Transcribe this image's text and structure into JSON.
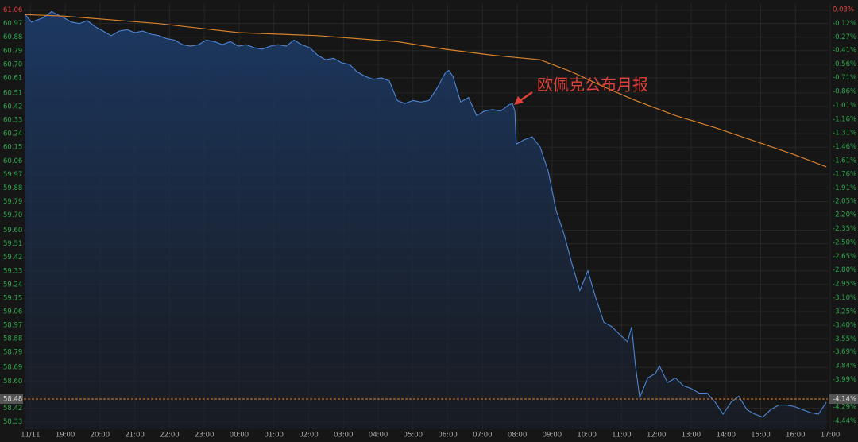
{
  "chart_data": {
    "type": "line",
    "annotation": "欧佩克公布月报",
    "xlim": [
      -0.19,
      22.93
    ],
    "xticks": [
      {
        "value": 0,
        "label": "11/11"
      },
      {
        "value": 1,
        "label": "19:00"
      },
      {
        "value": 2,
        "label": "20:00"
      },
      {
        "value": 3,
        "label": "21:00"
      },
      {
        "value": 4,
        "label": "22:00"
      },
      {
        "value": 5,
        "label": "23:00"
      },
      {
        "value": 6,
        "label": "00:00"
      },
      {
        "value": 7,
        "label": "01:00"
      },
      {
        "value": 8,
        "label": "02:00"
      },
      {
        "value": 9,
        "label": "03:00"
      },
      {
        "value": 10,
        "label": "04:00"
      },
      {
        "value": 11,
        "label": "05:00"
      },
      {
        "value": 12,
        "label": "06:00"
      },
      {
        "value": 13,
        "label": "07:00"
      },
      {
        "value": 14,
        "label": "08:00"
      },
      {
        "value": 15,
        "label": "09:00"
      },
      {
        "value": 16,
        "label": "10:00"
      },
      {
        "value": 17,
        "label": "11:00"
      },
      {
        "value": 18,
        "label": "12:00"
      },
      {
        "value": 19,
        "label": "13:00"
      },
      {
        "value": 20,
        "label": "14:00"
      },
      {
        "value": 21,
        "label": "15:00"
      },
      {
        "value": 22,
        "label": "16:00"
      },
      {
        "value": 23,
        "label": "17:00"
      }
    ],
    "ylim": [
      58.28,
      61.1
    ],
    "yticks": [
      61.06,
      60.97,
      60.88,
      60.79,
      {
        "value": 60.7,
        "label": "60.70"
      },
      60.61,
      60.51,
      60.42,
      60.33,
      60.24,
      60.15,
      60.06,
      59.97,
      59.88,
      59.79,
      {
        "value": 59.7,
        "label": "59.70"
      },
      {
        "value": 59.6,
        "label": "59.60"
      },
      59.51,
      59.42,
      59.33,
      59.24,
      59.15,
      59.06,
      58.97,
      58.88,
      58.79,
      58.69,
      {
        "value": 58.6,
        "label": "58.60"
      },
      58.42,
      58.33
    ],
    "y2lim": [
      -4.53,
      0.09
    ],
    "y2ticks": [
      {
        "value": 0.03,
        "label": "0.03%"
      },
      {
        "value": -0.12,
        "label": "-0.12%"
      },
      {
        "value": -0.27,
        "label": "-0.27%"
      },
      {
        "value": -0.41,
        "label": "-0.41%"
      },
      {
        "value": -0.56,
        "label": "-0.56%"
      },
      {
        "value": -0.71,
        "label": "-0.71%"
      },
      {
        "value": -0.86,
        "label": "-0.86%"
      },
      {
        "value": -1.01,
        "label": "-1.01%"
      },
      {
        "value": -1.16,
        "label": "-1.16%"
      },
      {
        "value": -1.31,
        "label": "-1.31%"
      },
      {
        "value": -1.46,
        "label": "-1.46%"
      },
      {
        "value": -1.61,
        "label": "-1.61%"
      },
      {
        "value": -1.76,
        "label": "-1.76%"
      },
      {
        "value": -1.91,
        "label": "-1.91%"
      },
      {
        "value": -2.05,
        "label": "-2.05%"
      },
      {
        "value": -2.2,
        "label": "-2.20%"
      },
      {
        "value": -2.35,
        "label": "-2.35%"
      },
      {
        "value": -2.5,
        "label": "-2.50%"
      },
      {
        "value": -2.65,
        "label": "-2.65%"
      },
      {
        "value": -2.8,
        "label": "-2.80%"
      },
      {
        "value": -2.95,
        "label": "-2.95%"
      },
      {
        "value": -3.1,
        "label": "-3.10%"
      },
      {
        "value": -3.25,
        "label": "-3.25%"
      },
      {
        "value": -3.4,
        "label": "-3.40%"
      },
      {
        "value": -3.55,
        "label": "-3.55%"
      },
      {
        "value": -3.69,
        "label": "-3.69%"
      },
      {
        "value": -3.84,
        "label": "-3.84%"
      },
      {
        "value": -3.99,
        "label": "-3.99%"
      },
      {
        "value": -4.29,
        "label": "-4.29%"
      },
      {
        "value": -4.44,
        "label": "-4.44%"
      }
    ],
    "reference_line": {
      "value": 58.48,
      "label": "58.48",
      "y2_label": "-4.14%",
      "color": "#d9822b"
    },
    "grid": true,
    "up_color": "#e0413a",
    "down_color": "#2fa84f",
    "series": [
      {
        "color": "#4d86d6",
        "fill": true,
        "x": [
          -0.15,
          0.03,
          0.38,
          0.61,
          0.77,
          0.95,
          1.18,
          1.41,
          1.63,
          1.86,
          2.09,
          2.32,
          2.55,
          2.78,
          3.0,
          3.23,
          3.46,
          3.69,
          3.92,
          4.15,
          4.38,
          4.6,
          4.83,
          5.06,
          5.29,
          5.52,
          5.75,
          5.98,
          6.2,
          6.43,
          6.66,
          6.89,
          7.12,
          7.35,
          7.58,
          7.8,
          8.03,
          8.26,
          8.49,
          8.72,
          8.95,
          9.17,
          9.4,
          9.63,
          9.86,
          10.09,
          10.32,
          10.55,
          10.77,
          11.0,
          11.23,
          11.46,
          11.69,
          11.92,
          12.03,
          12.15,
          12.37,
          12.6,
          12.83,
          13.06,
          13.29,
          13.52,
          13.75,
          13.86,
          13.93,
          13.97,
          14.2,
          14.43,
          14.66,
          14.89,
          15.12,
          15.35,
          15.57,
          15.8,
          16.03,
          16.26,
          16.49,
          16.72,
          16.94,
          17.17,
          17.29,
          17.4,
          17.52,
          17.75,
          17.97,
          18.09,
          18.32,
          18.55,
          18.77,
          19.0,
          19.23,
          19.46,
          19.69,
          19.92,
          20.15,
          20.37,
          20.6,
          20.83,
          21.06,
          21.29,
          21.52,
          21.74,
          21.97,
          22.2,
          22.43,
          22.66,
          22.89
        ],
        "values": [
          61.03,
          60.98,
          61.01,
          61.05,
          61.03,
          61.01,
          60.98,
          60.97,
          60.99,
          60.95,
          60.92,
          60.89,
          60.92,
          60.93,
          60.91,
          60.92,
          60.9,
          60.89,
          60.87,
          60.86,
          60.83,
          60.82,
          60.83,
          60.86,
          60.85,
          60.83,
          60.85,
          60.82,
          60.83,
          60.81,
          60.8,
          60.82,
          60.83,
          60.82,
          60.86,
          60.83,
          60.81,
          60.76,
          60.73,
          60.74,
          60.71,
          60.7,
          60.65,
          60.62,
          60.6,
          60.61,
          60.59,
          60.46,
          60.44,
          60.46,
          60.45,
          60.46,
          60.54,
          60.64,
          60.66,
          60.62,
          60.45,
          60.48,
          60.36,
          60.39,
          60.4,
          60.39,
          60.43,
          60.44,
          60.39,
          60.17,
          60.2,
          60.22,
          60.15,
          59.99,
          59.73,
          59.57,
          59.38,
          59.2,
          59.33,
          59.15,
          58.99,
          58.96,
          58.91,
          58.86,
          58.96,
          58.7,
          58.49,
          58.62,
          58.65,
          58.7,
          58.59,
          58.62,
          58.57,
          58.55,
          58.52,
          58.52,
          58.46,
          58.38,
          58.46,
          58.5,
          58.41,
          58.38,
          58.36,
          58.41,
          58.44,
          58.44,
          58.43,
          58.41,
          58.39,
          58.38,
          58.46
        ]
      },
      {
        "color": "#d9822b",
        "fill": false,
        "x": [
          -0.15,
          0.95,
          3.69,
          5.98,
          8.26,
          10.55,
          11.92,
          13.29,
          14.66,
          15.57,
          16.49,
          17.4,
          18.55,
          19.69,
          20.83,
          21.97,
          22.89
        ],
        "values": [
          61.03,
          61.02,
          60.97,
          60.91,
          60.89,
          60.85,
          60.8,
          60.76,
          60.73,
          60.65,
          60.55,
          60.46,
          60.36,
          60.28,
          60.19,
          60.1,
          60.02
        ]
      }
    ]
  }
}
